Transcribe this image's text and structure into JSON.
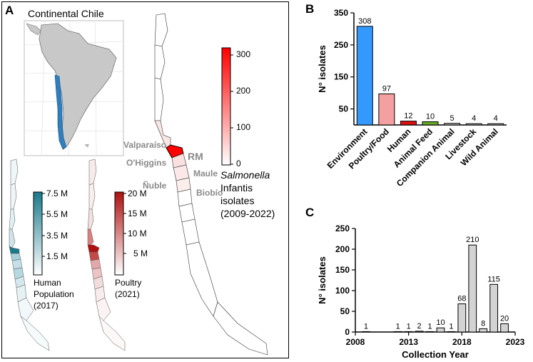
{
  "panel_letters": {
    "a": "A",
    "b": "B",
    "c": "C"
  },
  "map_panel": {
    "inset_title": "Continental Chile",
    "regions": [
      "Valparaíso",
      "O'Higgins",
      "Ñuble",
      "RM",
      "Maule",
      "Biobío"
    ],
    "main_legend": {
      "title_italic": "Salmonella",
      "line2": "Infantis",
      "line3": "isolates",
      "line4": "(2009-2022)",
      "ticks": [
        "300",
        "200",
        "100",
        "0"
      ]
    },
    "human_legend": {
      "line1": "Human",
      "line2": "Population",
      "line3": "(2017)",
      "ticks": [
        "7.5 M",
        "5.5 M",
        "3.5 M",
        "1.5 M"
      ]
    },
    "poultry_legend": {
      "line1": "Poultry",
      "line2": "(2021)",
      "ticks": [
        "20 M",
        "15 M",
        "10 M",
        "5 M"
      ]
    },
    "colors": {
      "salmonella_high": "#ff0000",
      "human_high": "#1a7a8c",
      "poultry_high": "#b01010"
    }
  },
  "chart_data": [
    {
      "type": "bar",
      "panel": "B",
      "categories": [
        "Environment",
        "Poultry/Food",
        "Human",
        "Animal Feed",
        "Companion Animal",
        "Livestock",
        "Wild Animal"
      ],
      "values": [
        308,
        97,
        12,
        10,
        5,
        4,
        4
      ],
      "colors": [
        "#3399ff",
        "#f4a0a0",
        "#dd1010",
        "#66aa22",
        "#b8b8b8",
        "#b8b8b8",
        "#b8b8b8"
      ],
      "ylabel": "N° isolates",
      "yticks": [
        50,
        150,
        250,
        350
      ],
      "ylim": [
        0,
        350
      ],
      "scale": "broken-axis"
    },
    {
      "type": "bar",
      "panel": "C",
      "x": [
        2009,
        2012,
        2013,
        2014,
        2015,
        2016,
        2017,
        2018,
        2019,
        2020,
        2021,
        2022
      ],
      "values": [
        1,
        1,
        1,
        2,
        1,
        10,
        1,
        68,
        210,
        8,
        115,
        20
      ],
      "xlabel": "Collection Year",
      "ylabel": "N° isolates",
      "xticks": [
        2008,
        2013,
        2018,
        2023
      ],
      "yticks": [
        0,
        50,
        100,
        150,
        200,
        250
      ],
      "xlim": [
        2008,
        2023
      ],
      "ylim": [
        0,
        250
      ],
      "bar_color": "#d3d3d3"
    }
  ]
}
